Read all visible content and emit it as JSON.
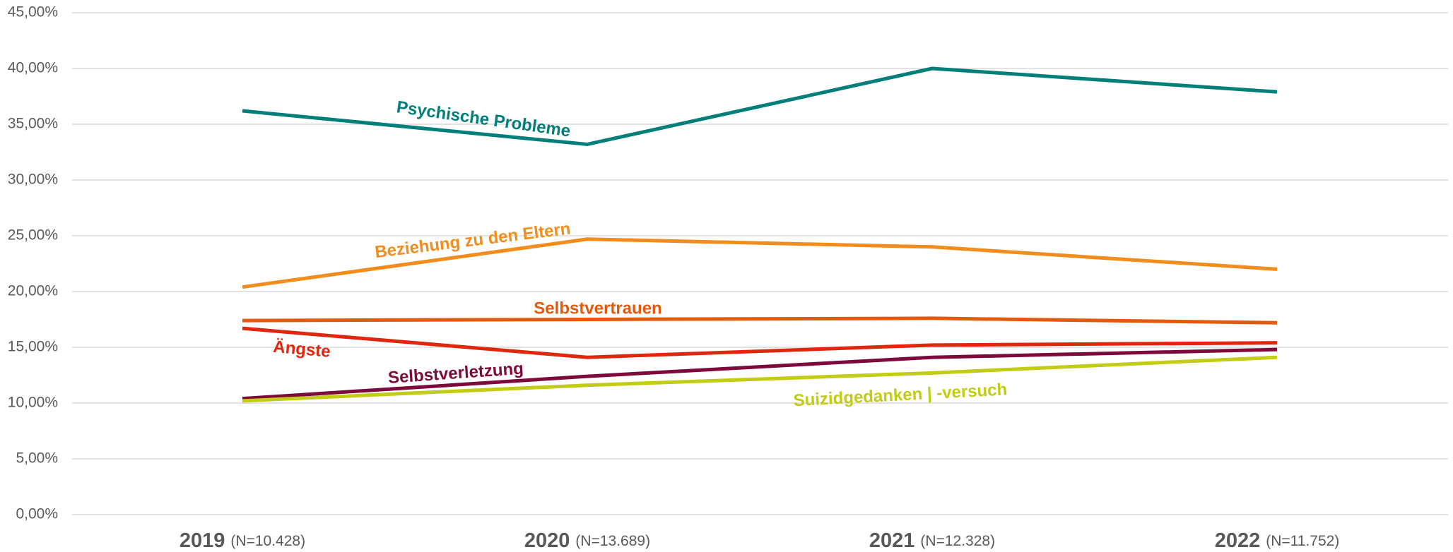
{
  "chart_data": {
    "type": "line",
    "categories": [
      "2019",
      "2020",
      "2021",
      "2022"
    ],
    "category_notes": [
      "(N=10.428)",
      "(N=13.689)",
      "(N=12.328)",
      "(N=11.752)"
    ],
    "series": [
      {
        "name": "Psychische Probleme",
        "color": "#007f7a",
        "values": [
          36.2,
          33.2,
          40.0,
          37.9
        ]
      },
      {
        "name": "Beziehung zu den Eltern",
        "color": "#f28c1c",
        "values": [
          20.4,
          24.7,
          24.0,
          22.0
        ]
      },
      {
        "name": "Selbstvertrauen",
        "color": "#e35a0f",
        "values": [
          17.4,
          17.5,
          17.6,
          17.2
        ]
      },
      {
        "name": "Ängste",
        "color": "#e1260e",
        "values": [
          16.7,
          14.1,
          15.2,
          15.4
        ]
      },
      {
        "name": "Selbstverletzung",
        "color": "#7d0a3a",
        "values": [
          10.4,
          12.4,
          14.1,
          14.8
        ]
      },
      {
        "name": "Suizidgedanken | -versuch",
        "color": "#c2cc12",
        "values": [
          10.2,
          11.6,
          12.7,
          14.1
        ]
      }
    ],
    "ylim": [
      0,
      45
    ],
    "yticks": [
      {
        "value": 0,
        "label": "0,00%"
      },
      {
        "value": 5,
        "label": "5,00%"
      },
      {
        "value": 10,
        "label": "10,00%"
      },
      {
        "value": 15,
        "label": "15,00%"
      },
      {
        "value": 20,
        "label": "20,00%"
      },
      {
        "value": 25,
        "label": "25,00%"
      },
      {
        "value": 30,
        "label": "30,00%"
      },
      {
        "value": 35,
        "label": "35,00%"
      },
      {
        "value": 40,
        "label": "40,00%"
      },
      {
        "value": 45,
        "label": "45,00%"
      }
    ],
    "grid": true
  }
}
